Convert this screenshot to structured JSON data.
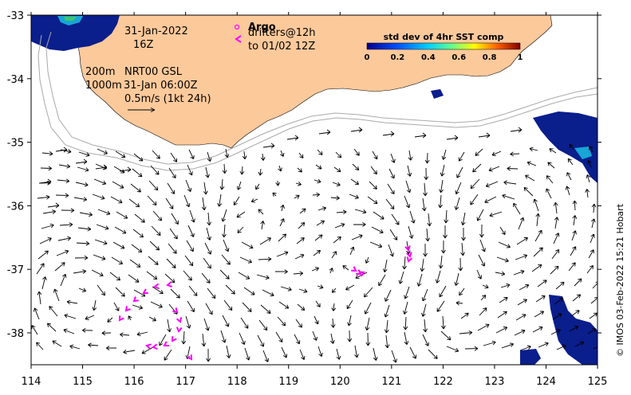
{
  "map": {
    "date": "31-Jan-2022",
    "hour": "16Z",
    "isobath_shallow": "200m",
    "isobath_deep": "1000m",
    "product": "NRT00 GSL",
    "product_time": "31-Jan 06:00Z",
    "scale_label": "0.5m/s (1kt 24h)",
    "argo_label": "Argo",
    "drifters_label": "drifters@12h",
    "drifters_period": "to 01/02 12Z",
    "credit": "© IMOS 03-Feb-2022 15:21 Hobart",
    "colorbar": {
      "title": "std dev of 4hr SST comp",
      "ticks": [
        "0",
        "0.2",
        "0.4",
        "0.6",
        "0.8",
        "1"
      ]
    },
    "axes": {
      "x_ticks": [
        "114",
        "115",
        "116",
        "117",
        "118",
        "119",
        "120",
        "121",
        "122",
        "123",
        "124",
        "125"
      ],
      "y_ticks": [
        "-33",
        "-34",
        "-35",
        "-36",
        "-37",
        "-38"
      ]
    },
    "colors": {
      "land": "#fcc99b",
      "drifter": "#ff00ff",
      "arrow": "#000000",
      "isobath": "#aaaaaa",
      "sst_low": "#0a1e8c",
      "sst_mid": "#17a6d6"
    }
  }
}
